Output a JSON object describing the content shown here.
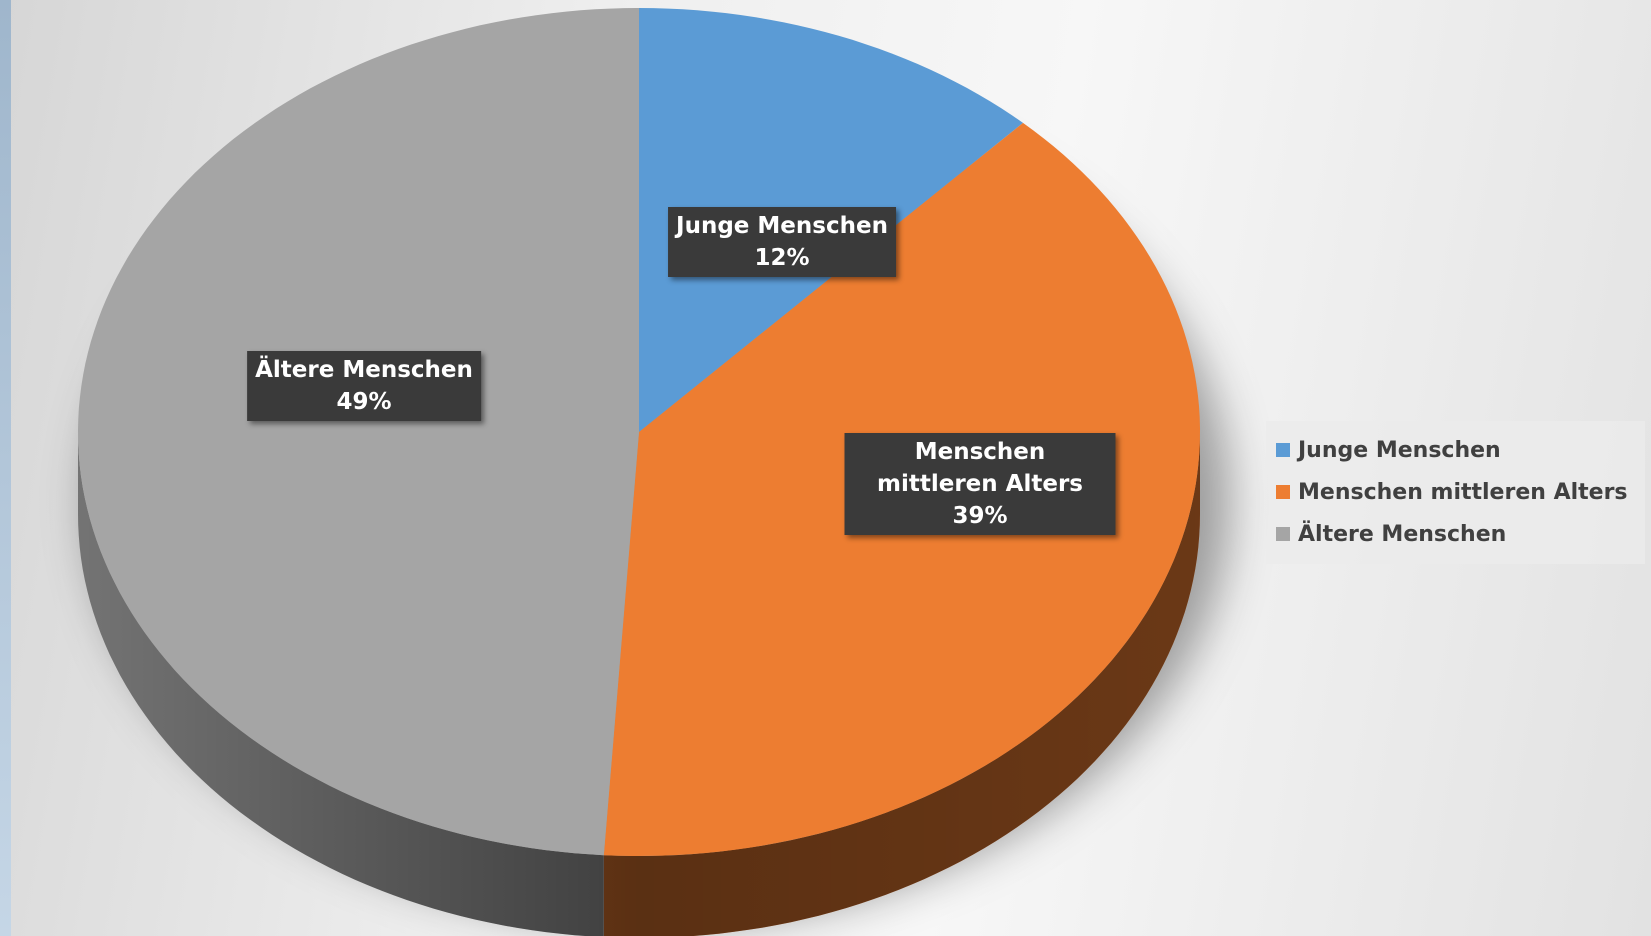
{
  "chart_data": {
    "type": "pie",
    "categories": [
      "Junge Menschen",
      "Menschen mittleren Alters",
      "Ältere Menschen"
    ],
    "values": [
      12,
      39,
      49
    ],
    "value_labels": [
      "12%",
      "39%",
      "49%"
    ],
    "colors": [
      "#5b9bd5",
      "#ed7d31",
      "#a5a5a5"
    ],
    "legend": "right"
  }
}
